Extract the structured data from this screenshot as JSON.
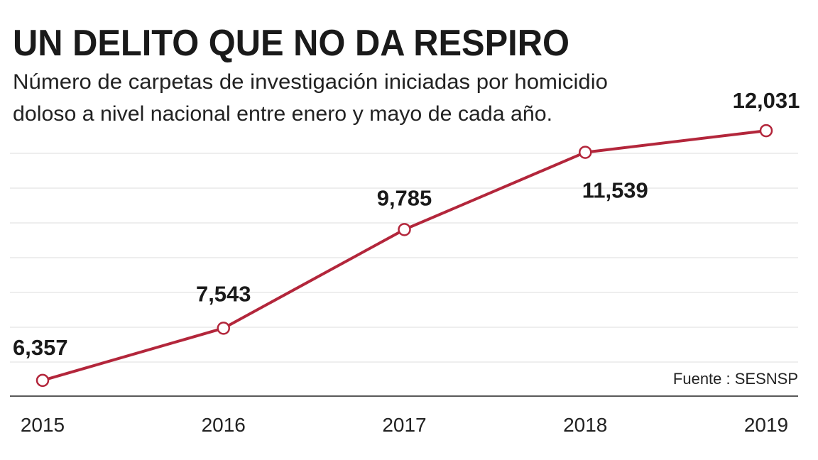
{
  "chart_data": {
    "type": "line",
    "title": "UN DELITO QUE NO DA RESPIRO",
    "subtitle": [
      "Número de carpetas de investigación iniciadas por homicidio",
      "doloso a nivel nacional entre enero y mayo de cada año."
    ],
    "categories": [
      "2015",
      "2016",
      "2017",
      "2018",
      "2019"
    ],
    "values": [
      6357,
      7543,
      9785,
      11539,
      12031
    ],
    "data_labels": [
      "6,357",
      "7,543",
      "9,785",
      "11,539",
      "12,031"
    ],
    "xlabel": "",
    "ylabel": "",
    "ylim": [
      6000,
      13000
    ],
    "grid": true,
    "source": "Fuente : SESNSP",
    "colors": {
      "line": "#b3263b",
      "marker_fill": "#ffffff",
      "grid": "#eeeeee",
      "axis": "#222222"
    }
  }
}
